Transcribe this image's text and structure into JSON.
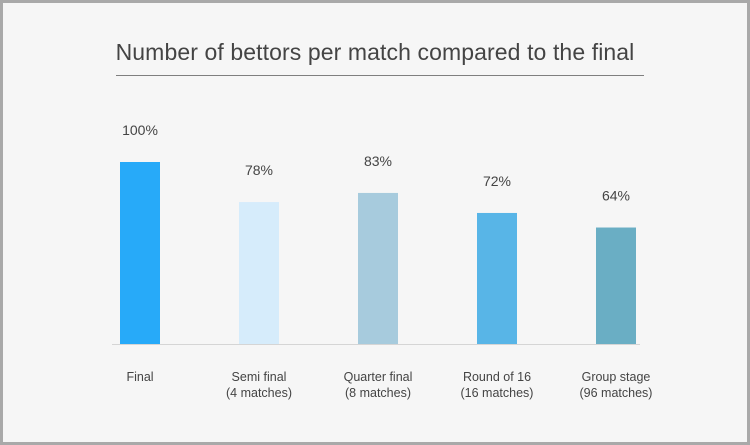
{
  "chart_data": {
    "type": "bar",
    "title": "Number of bettors per match compared to the final",
    "xlabel": "",
    "ylabel": "",
    "ylim": [
      0,
      100
    ],
    "value_suffix": "%",
    "grid": false,
    "legend": "none",
    "categories": [
      [
        "Final"
      ],
      [
        "Semi final",
        "(4 matches)"
      ],
      [
        "Quarter final",
        "(8 matches)"
      ],
      [
        "Round of 16",
        "(16 matches)"
      ],
      [
        "Group stage",
        "(96 matches)"
      ]
    ],
    "values": [
      100,
      78,
      83,
      72,
      64
    ],
    "value_labels": [
      "100%",
      "78%",
      "83%",
      "72%",
      "64%"
    ],
    "colors": [
      "#27aaf9",
      "#d6ecfb",
      "#a7cbdd",
      "#58b5e7",
      "#6aaec4"
    ]
  }
}
